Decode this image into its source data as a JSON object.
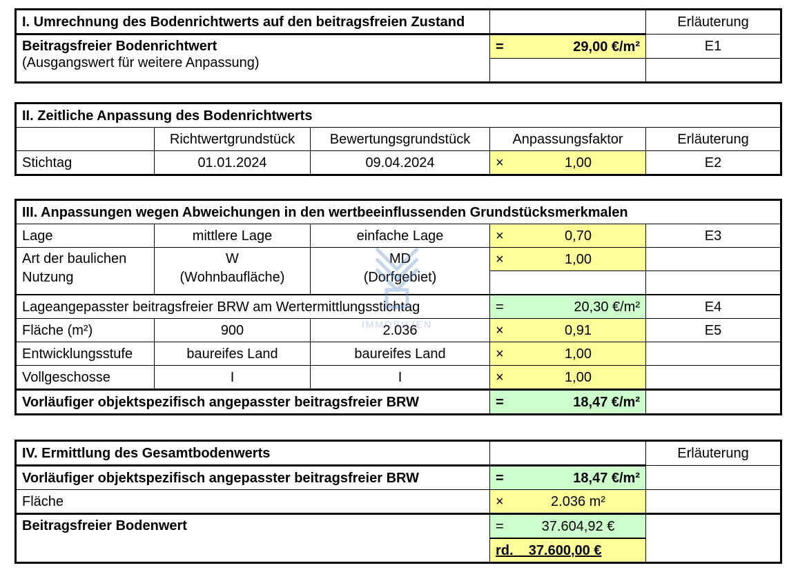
{
  "section1": {
    "title": "I. Umrechnung des Bodenrichtwerts auf den beitragsfreien Zustand",
    "erl_header": "Erläuterung",
    "label_bold": "Beitragsfreier Bodenrichtwert",
    "label_sub": "(Ausgangswert für weitere Anpassung)",
    "op": "=",
    "value": "29,00 €/m²",
    "erl": "E1"
  },
  "section2": {
    "title": "II. Zeitliche Anpassung des Bodenrichtwerts",
    "col_richtwert": "Richtwertgrundstück",
    "col_bewertung": "Bewertungsgrundstück",
    "col_faktor": "Anpassungsfaktor",
    "col_erl": "Erläuterung",
    "row_label": "Stichtag",
    "richtwert": "01.01.2024",
    "bewertung": "09.04.2024",
    "op": "×",
    "faktor": "1,00",
    "erl": "E2"
  },
  "section3": {
    "title": "III. Anpassungen wegen Abweichungen in den wertbeeinflussenden Grundstücksmerkmalen",
    "lage": {
      "label": "Lage",
      "richtwert": "mittlere Lage",
      "bewertung": "einfache Lage",
      "op": "×",
      "faktor": "0,70",
      "erl": "E3"
    },
    "art": {
      "label1": "Art der baulichen",
      "label2": "Nutzung",
      "richtwert1": "W",
      "richtwert2": "(Wohnbaufläche)",
      "bewertung1": "MD",
      "bewertung2": "(Dorfgebiet)",
      "op": "×",
      "faktor": "1,00"
    },
    "lageangepasst": {
      "label": "Lageangepasster beitragsfreier BRW am Wertermittlungsstichtag",
      "op": "=",
      "value": "20,30 €/m²",
      "erl": "E4"
    },
    "flaeche": {
      "label": "Fläche (m²)",
      "richtwert": "900",
      "bewertung": "2.036",
      "op": "×",
      "faktor": "0,91",
      "erl": "E5"
    },
    "entwicklung": {
      "label": "Entwicklungsstufe",
      "richtwert": "baureifes Land",
      "bewertung": "baureifes Land",
      "op": "×",
      "faktor": "1,00"
    },
    "vollgeschosse": {
      "label": "Vollgeschosse",
      "richtwert": "I",
      "bewertung": "I",
      "op": "×",
      "faktor": "1,00"
    },
    "vorlaeufig": {
      "label": "Vorläufiger objektspezifisch angepasster beitragsfreier BRW",
      "op": "=",
      "value": "18,47 €/m²"
    }
  },
  "section4": {
    "title": "IV. Ermittlung des Gesamtbodenwerts",
    "erl_header": "Erläuterung",
    "vorlaeufig": {
      "label": "Vorläufiger objektspezifisch angepasster beitragsfreier BRW",
      "op": "=",
      "value": "18,47 €/m²"
    },
    "flaeche": {
      "label": "Fläche",
      "op": "×",
      "value": "2.036 m²"
    },
    "bodenwert": {
      "label": "Beitragsfreier Bodenwert",
      "op": "=",
      "value": "37.604,92 €",
      "rd_value": "rd.    37.600,00 €"
    }
  },
  "watermark": {
    "text": "IMMOBILIEN"
  },
  "colors": {
    "yellow": "#ffff99",
    "green": "#ccffcc"
  }
}
